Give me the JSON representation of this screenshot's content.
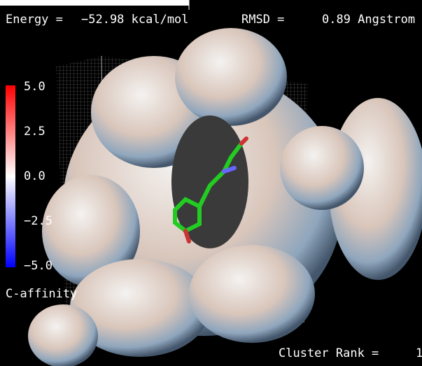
{
  "overlay": {
    "energy_label": "Energy =",
    "energy_value": "−52.98 kcal/mol",
    "rmsd_label": "RMSD =",
    "rmsd_value": "0.89 Angstrom",
    "cluster_label": "Cluster Rank =",
    "cluster_value": "1"
  },
  "color_scale": {
    "labels": [
      "5.0",
      "2.5",
      "0.0",
      "−2.5",
      "−5.0"
    ],
    "title": "C-affinity"
  }
}
